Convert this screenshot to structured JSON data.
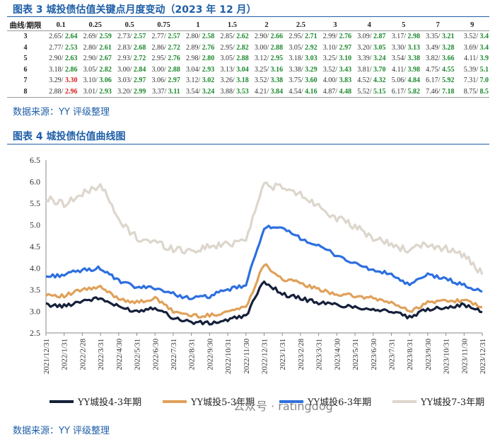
{
  "section1": {
    "title": "图表 3 城投债估值关键点月度变动（2023 年 12 月）",
    "source": "数据来源：YY 评级整理"
  },
  "table": {
    "corner": "曲线/期限",
    "columns": [
      "0.1",
      "0.25",
      "0.5",
      "0.75",
      "1",
      "1.5",
      "2",
      "2.5",
      "3",
      "4",
      "5",
      "7",
      "9"
    ],
    "rows": [
      {
        "label": "3",
        "cells": [
          [
            "2.65",
            "2.64"
          ],
          [
            "2.69",
            "2.59"
          ],
          [
            "2.73",
            "2.57"
          ],
          [
            "2.77",
            "2.57"
          ],
          [
            "2.80",
            "2.58"
          ],
          [
            "2.85",
            "2.62"
          ],
          [
            "2.90",
            "2.66"
          ],
          [
            "2.95",
            "2.71"
          ],
          [
            "2.99",
            "2.76"
          ],
          [
            "3.09",
            "2.87"
          ],
          [
            "3.17",
            "2.98"
          ],
          [
            "3.35",
            "3.21"
          ],
          [
            "3.52",
            "3.4"
          ]
        ]
      },
      {
        "label": "4",
        "cells": [
          [
            "2.77",
            "2.53"
          ],
          [
            "2.80",
            "2.61"
          ],
          [
            "2.83",
            "2.68"
          ],
          [
            "2.86",
            "2.72"
          ],
          [
            "2.89",
            "2.76"
          ],
          [
            "2.95",
            "2.82"
          ],
          [
            "3.00",
            "2.88"
          ],
          [
            "3.05",
            "2.92"
          ],
          [
            "3.10",
            "2.97"
          ],
          [
            "3.20",
            "3.05"
          ],
          [
            "3.30",
            "3.13"
          ],
          [
            "3.49",
            "3.28"
          ],
          [
            "3.69",
            "3.4"
          ]
        ]
      },
      {
        "label": "5",
        "cells": [
          [
            "2.90",
            "2.63"
          ],
          [
            "2.90",
            "2.67"
          ],
          [
            "2.93",
            "2.72"
          ],
          [
            "2.95",
            "2.76"
          ],
          [
            "2.98",
            "2.80"
          ],
          [
            "3.05",
            "2.88"
          ],
          [
            "3.12",
            "2.95"
          ],
          [
            "3.18",
            "3.03"
          ],
          [
            "3.25",
            "3.10"
          ],
          [
            "3.39",
            "3.24"
          ],
          [
            "3.54",
            "3.38"
          ],
          [
            "3.82",
            "3.66"
          ],
          [
            "4.11",
            "3.9"
          ]
        ]
      },
      {
        "label": "6",
        "cells": [
          [
            "3.18",
            "2.86"
          ],
          [
            "3.05",
            "2.82"
          ],
          [
            "3.00",
            "2.84"
          ],
          [
            "3.00",
            "2.88"
          ],
          [
            "3.04",
            "2.93"
          ],
          [
            "3.13",
            "3.04"
          ],
          [
            "3.25",
            "3.16"
          ],
          [
            "3.38",
            "3.29"
          ],
          [
            "3.52",
            "3.43"
          ],
          [
            "3.81",
            "3.70"
          ],
          [
            "4.11",
            "3.98"
          ],
          [
            "4.75",
            "4.55"
          ],
          [
            "5.39",
            "5.1"
          ]
        ]
      },
      {
        "label": "7",
        "cells": [
          [
            "3.29",
            "3.30"
          ],
          [
            "3.10",
            "3.06"
          ],
          [
            "3.03",
            "2.97"
          ],
          [
            "3.06",
            "2.97"
          ],
          [
            "3.12",
            "3.02"
          ],
          [
            "3.26",
            "3.18"
          ],
          [
            "3.52",
            "3.38"
          ],
          [
            "3.75",
            "3.60"
          ],
          [
            "4.00",
            "3.83"
          ],
          [
            "4.52",
            "4.32"
          ],
          [
            "5.06",
            "4.84"
          ],
          [
            "6.17",
            "5.92"
          ],
          [
            "7.31",
            "7.0"
          ]
        ]
      },
      {
        "label": "8",
        "cells": [
          [
            "2.88",
            "2.96"
          ],
          [
            "3.01",
            "2.93"
          ],
          [
            "3.20",
            "2.99"
          ],
          [
            "3.37",
            "3.11"
          ],
          [
            "3.54",
            "3.24"
          ],
          [
            "3.88",
            "3.53"
          ],
          [
            "4.21",
            "3.84"
          ],
          [
            "4.54",
            "4.16"
          ],
          [
            "4.87",
            "4.48"
          ],
          [
            "5.52",
            "5.15"
          ],
          [
            "6.17",
            "5.82"
          ],
          [
            "7.46",
            "7.18"
          ],
          [
            "8.75",
            "8.5"
          ]
        ]
      }
    ]
  },
  "section2": {
    "title": "图表 4 城投债估值曲线图",
    "source": "数据来源：YY 评级整理"
  },
  "watermark": "公众号 · ratingdog",
  "colors": {
    "title_blue": "#1f5fa8",
    "down_green": "#1d8a2e",
    "up_red": "#d42020"
  },
  "chart_data": {
    "type": "line",
    "title": "",
    "xlabel": "",
    "ylabel": "",
    "ylim": [
      2.5,
      6.5
    ],
    "yticks": [
      "2.5",
      "3.0",
      "3.5",
      "4.0",
      "4.5",
      "5.0",
      "5.5",
      "6.0",
      "6.5"
    ],
    "x": [
      "2021/12/31",
      "2022/1/31",
      "2022/2/28",
      "2022/3/31",
      "2022/4/30",
      "2022/5/31",
      "2022/6/30",
      "2022/7/31",
      "2022/8/31",
      "2022/9/30",
      "2022/10/31",
      "2022/11/30",
      "2022/12/31",
      "2023/1/31",
      "2023/2/28",
      "2023/3/31",
      "2023/4/30",
      "2023/5/31",
      "2023/6/30",
      "2023/7/31",
      "2023/8/31",
      "2023/9/30",
      "2023/10/31",
      "2023/11/30",
      "2023/12/31"
    ],
    "legend_position": "bottom",
    "series": [
      {
        "name": "YY城投4-3年期",
        "color": "#16203a",
        "values": [
          3.15,
          3.12,
          3.25,
          3.3,
          3.1,
          3.0,
          3.1,
          2.85,
          2.75,
          2.72,
          2.8,
          2.9,
          3.7,
          3.4,
          3.3,
          3.2,
          3.15,
          3.1,
          3.05,
          3.0,
          2.85,
          3.05,
          3.1,
          3.15,
          2.98
        ]
      },
      {
        "name": "YY城投5-3年期",
        "color": "#e0a15a",
        "values": [
          3.4,
          3.35,
          3.5,
          3.55,
          3.3,
          3.2,
          3.3,
          3.0,
          2.9,
          2.9,
          3.0,
          3.1,
          4.1,
          3.75,
          3.65,
          3.5,
          3.4,
          3.35,
          3.3,
          3.2,
          3.0,
          3.2,
          3.25,
          3.25,
          3.1
        ]
      },
      {
        "name": "YY城投6-3年期",
        "color": "#2e6fe0",
        "values": [
          3.8,
          3.85,
          3.95,
          4.0,
          3.7,
          3.55,
          3.55,
          3.4,
          3.3,
          3.35,
          3.5,
          3.6,
          4.95,
          4.9,
          4.7,
          4.5,
          4.3,
          4.1,
          3.95,
          3.85,
          3.6,
          3.85,
          3.75,
          3.6,
          3.45
        ]
      },
      {
        "name": "YY城投7-3年期",
        "color": "#dcd6cc",
        "values": [
          5.6,
          5.5,
          5.7,
          5.95,
          5.1,
          4.7,
          4.6,
          4.45,
          4.4,
          4.5,
          4.55,
          4.7,
          5.95,
          5.85,
          5.7,
          5.45,
          5.15,
          4.95,
          4.7,
          4.55,
          4.4,
          4.55,
          4.45,
          4.3,
          3.85
        ]
      }
    ]
  }
}
